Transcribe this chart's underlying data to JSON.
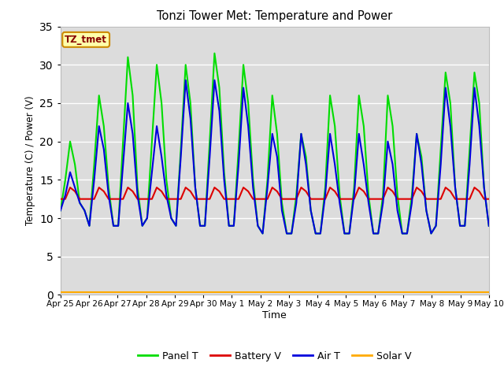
{
  "title": "Tonzi Tower Met: Temperature and Power",
  "xlabel": "Time",
  "ylabel": "Temperature (C) / Power (V)",
  "ylim": [
    0,
    35
  ],
  "annotation": "TZ_tmet",
  "bg_color": "#dcdcdc",
  "fig_bg": "#ffffff",
  "grid_color": "#ffffff",
  "tick_labels": [
    "Apr 25",
    "Apr 26",
    "Apr 27",
    "Apr 28",
    "Apr 29",
    "Apr 30",
    "May 1",
    "May 2",
    "May 3",
    "May 4",
    "May 5",
    "May 6",
    "May 7",
    "May 8",
    "May 9",
    "May 10"
  ],
  "panel_T_color": "#00dd00",
  "battery_V_color": "#dd0000",
  "air_T_color": "#0000dd",
  "solar_V_color": "#ffaa00",
  "line_width": 1.5,
  "panel_T": [
    11,
    15,
    20,
    17,
    12,
    11,
    9,
    17,
    26,
    22,
    14,
    9,
    9,
    20,
    31,
    26,
    14,
    9,
    10,
    20,
    30,
    25,
    15,
    10,
    9,
    19,
    30,
    25,
    14,
    9,
    9,
    20,
    31.5,
    27,
    16,
    9,
    9,
    19,
    30,
    25,
    15,
    9,
    8,
    15,
    26,
    21,
    12,
    8,
    8,
    13,
    21,
    18,
    11,
    8,
    8,
    14,
    26,
    22,
    13,
    8,
    8,
    14,
    26,
    22,
    13,
    8,
    8,
    13,
    26,
    22,
    13,
    8,
    8,
    13,
    21,
    18,
    11,
    8,
    9,
    19,
    29,
    25,
    14,
    9,
    9,
    19,
    29,
    25,
    14,
    9
  ],
  "air_T": [
    11,
    13,
    16,
    14,
    12,
    11,
    9,
    15,
    22,
    19,
    13,
    9,
    9,
    17,
    25,
    21,
    13,
    9,
    10,
    16,
    22,
    18,
    13,
    10,
    9,
    18,
    28,
    23,
    14,
    9,
    9,
    18,
    28,
    24,
    15,
    9,
    9,
    17,
    27,
    22,
    14,
    9,
    8,
    14,
    21,
    18,
    11,
    8,
    8,
    12,
    21,
    17,
    11,
    8,
    8,
    13,
    21,
    17,
    12,
    8,
    8,
    13,
    21,
    17,
    12,
    8,
    8,
    12,
    20,
    17,
    11,
    8,
    8,
    12,
    21,
    17,
    11,
    8,
    9,
    17,
    27,
    22,
    14,
    9,
    9,
    17,
    27,
    22,
    14,
    9
  ],
  "battery_V": [
    12.5,
    12.5,
    14.0,
    13.5,
    12.5,
    12.5,
    12.5,
    12.5,
    14.0,
    13.5,
    12.5,
    12.5,
    12.5,
    12.5,
    14.0,
    13.5,
    12.5,
    12.5,
    12.5,
    12.5,
    14.0,
    13.5,
    12.5,
    12.5,
    12.5,
    12.5,
    14.0,
    13.5,
    12.5,
    12.5,
    12.5,
    12.5,
    14.0,
    13.5,
    12.5,
    12.5,
    12.5,
    12.5,
    14.0,
    13.5,
    12.5,
    12.5,
    12.5,
    12.5,
    14.0,
    13.5,
    12.5,
    12.5,
    12.5,
    12.5,
    14.0,
    13.5,
    12.5,
    12.5,
    12.5,
    12.5,
    14.0,
    13.5,
    12.5,
    12.5,
    12.5,
    12.5,
    14.0,
    13.5,
    12.5,
    12.5,
    12.5,
    12.5,
    14.0,
    13.5,
    12.5,
    12.5,
    12.5,
    12.5,
    14.0,
    13.5,
    12.5,
    12.5,
    12.5,
    12.5,
    14.0,
    13.5,
    12.5,
    12.5,
    12.5,
    12.5,
    14.0,
    13.5,
    12.5,
    12.5
  ],
  "solar_V": [
    0.3,
    0.3,
    0.3,
    0.3,
    0.3,
    0.3,
    0.3,
    0.3,
    0.3,
    0.3,
    0.3,
    0.3,
    0.3,
    0.3,
    0.3,
    0.3,
    0.3,
    0.3,
    0.3,
    0.3,
    0.3,
    0.3,
    0.3,
    0.3,
    0.3,
    0.3,
    0.3,
    0.3,
    0.3,
    0.3,
    0.3,
    0.3,
    0.3,
    0.3,
    0.3,
    0.3,
    0.3,
    0.3,
    0.3,
    0.3,
    0.3,
    0.3,
    0.3,
    0.3,
    0.3,
    0.3,
    0.3,
    0.3,
    0.3,
    0.3,
    0.3,
    0.3,
    0.3,
    0.3,
    0.3,
    0.3,
    0.3,
    0.3,
    0.3,
    0.3,
    0.3,
    0.3,
    0.3,
    0.3,
    0.3,
    0.3,
    0.3,
    0.3,
    0.3,
    0.3,
    0.3,
    0.3,
    0.3,
    0.3,
    0.3,
    0.3,
    0.3,
    0.3,
    0.3,
    0.3,
    0.3,
    0.3,
    0.3,
    0.3,
    0.3,
    0.3,
    0.3,
    0.3,
    0.3,
    0.3
  ]
}
